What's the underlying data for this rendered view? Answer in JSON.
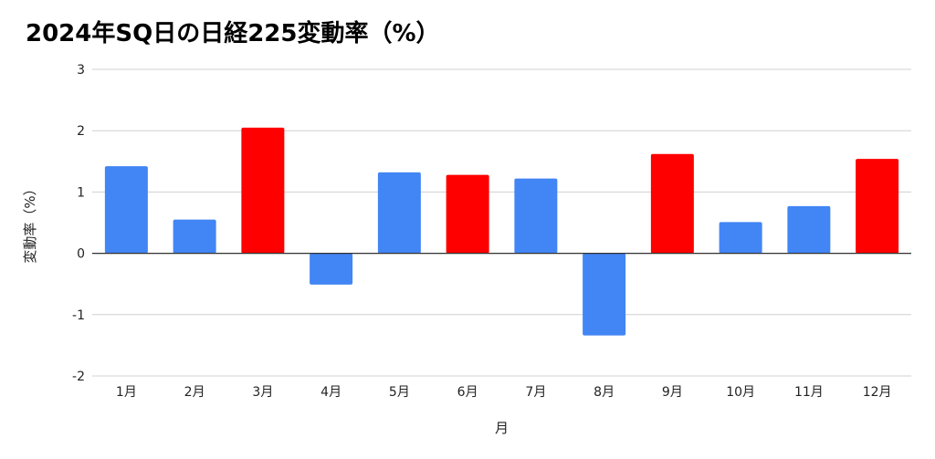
{
  "chart_data": {
    "type": "bar",
    "title": "2024年SQ日の日経225変動率（%）",
    "xlabel": "月",
    "ylabel": "変動率（%）",
    "categories": [
      "1月",
      "2月",
      "3月",
      "4月",
      "5月",
      "6月",
      "7月",
      "8月",
      "9月",
      "10月",
      "11月",
      "12月"
    ],
    "values": [
      1.42,
      0.55,
      2.05,
      -0.51,
      1.32,
      1.28,
      1.22,
      -1.34,
      1.62,
      0.51,
      0.77,
      1.54
    ],
    "bar_colors": [
      "#4285F4",
      "#4285F4",
      "#FF0000",
      "#4285F4",
      "#4285F4",
      "#FF0000",
      "#4285F4",
      "#4285F4",
      "#FF0000",
      "#4285F4",
      "#4285F4",
      "#FF0000"
    ],
    "ylim": [
      -2,
      3
    ],
    "yticks": [
      "3",
      "2",
      "1",
      "0",
      "-1",
      "-2"
    ],
    "ytick_values": [
      3,
      2,
      1,
      0,
      -1,
      -2
    ],
    "grid": true
  }
}
